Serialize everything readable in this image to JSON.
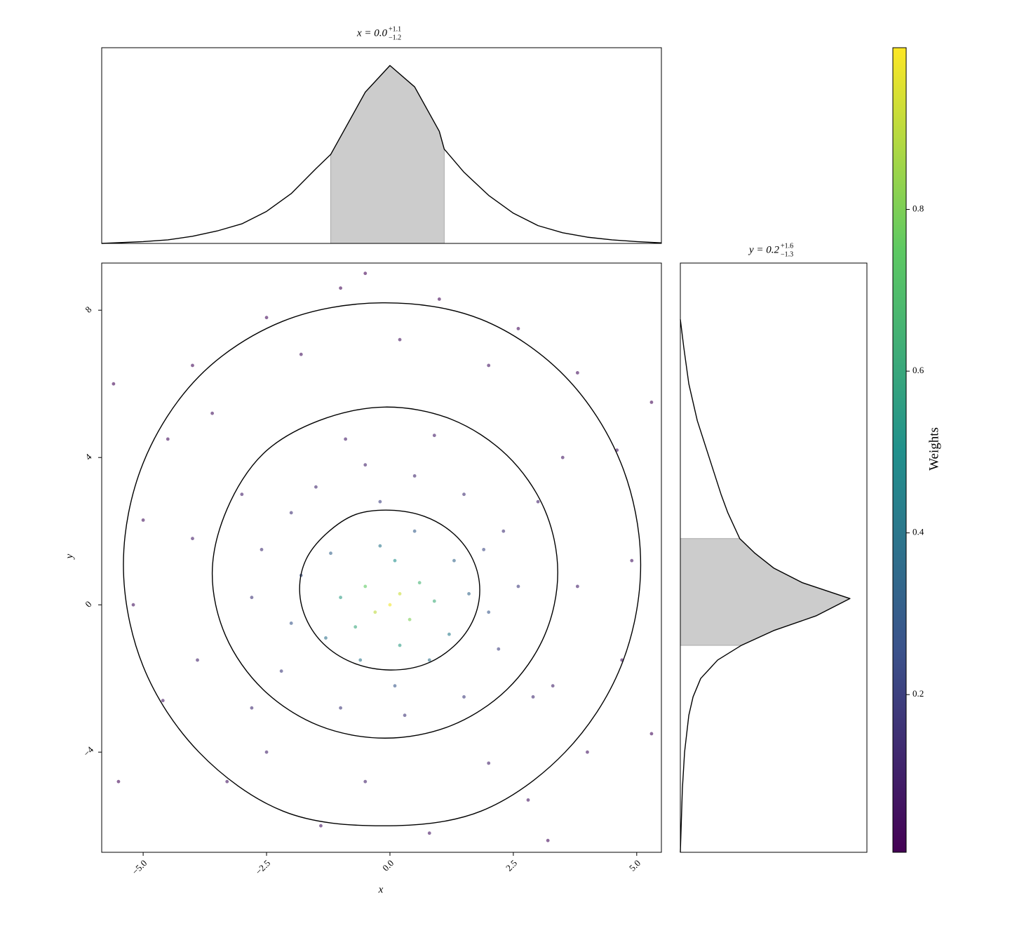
{
  "chart_data": [
    {
      "type": "scatter",
      "xlabel": "x",
      "ylabel": "y",
      "xlim": [
        -5.84,
        5.5
      ],
      "ylim": [
        -6.72,
        9.28
      ],
      "xticks": [
        {
          "value": -5.0,
          "label": "−5.0"
        },
        {
          "value": -2.5,
          "label": "−2.5"
        },
        {
          "value": 0,
          "label": "0.0"
        },
        {
          "value": 2.5,
          "label": "2.5"
        },
        {
          "value": 5.0,
          "label": "5.0"
        }
      ],
      "yticks": [
        8,
        4,
        0,
        {
          "value": -4,
          "label": "−4"
        }
      ],
      "x": [
        0,
        0.2,
        -0.3,
        0.4,
        -0.5,
        0.6,
        -0.7,
        0.9,
        -1.0,
        0.1,
        0.2,
        -0.2,
        1.2,
        -1.3,
        1.3,
        -1.2,
        0.5,
        -0.6,
        0.8,
        1.6,
        -2.0,
        -1.5,
        -0.5,
        0.5,
        1.5,
        2.3,
        2.6,
        2.2,
        1.5,
        0.3,
        -1.0,
        -2.2,
        -2.8,
        -2.6,
        -0.9,
        0.9,
        -3.0,
        3.0,
        2.9,
        -2.8,
        -1.8,
        1.9,
        -0.2,
        0.1,
        2.0,
        -2.0,
        -4.5,
        -4.0,
        -2.5,
        -1.0,
        1.0,
        2.6,
        3.8,
        4.6,
        4.9,
        4.7,
        4.0,
        2.8,
        0.8,
        -1.4,
        -3.3,
        -4.6,
        -5.2,
        -5.0,
        -3.6,
        -1.8,
        0.2,
        2.0,
        3.5,
        3.8,
        3.3,
        2.0,
        -0.5,
        -2.5,
        -3.9,
        -4.0,
        -5.6,
        5.3,
        5.3,
        -5.5,
        -0.5,
        3.2
      ],
      "y": [
        0,
        0.3,
        -0.2,
        -0.4,
        0.5,
        0.6,
        -0.6,
        0.1,
        0.2,
        1.2,
        -1.1,
        1.6,
        -0.8,
        -0.9,
        1.2,
        1.4,
        2.0,
        -1.5,
        -1.5,
        0.3,
        2.5,
        3.2,
        3.8,
        3.5,
        3.0,
        2.0,
        0.5,
        -1.2,
        -2.5,
        -3.0,
        -2.8,
        -1.8,
        0.2,
        1.5,
        4.5,
        4.6,
        3.0,
        2.8,
        -2.5,
        -2.8,
        0.8,
        1.5,
        2.8,
        -2.2,
        -0.2,
        -0.5,
        4.5,
        6.5,
        7.8,
        8.6,
        8.3,
        7.5,
        6.3,
        4.2,
        1.2,
        -1.5,
        -4.0,
        -5.3,
        -6.2,
        -6.0,
        -4.8,
        -2.6,
        0.0,
        2.3,
        5.2,
        6.8,
        7.2,
        6.5,
        4.0,
        0.5,
        -2.2,
        -4.3,
        -4.8,
        -4.0,
        -1.5,
        1.8,
        6.0,
        5.5,
        -3.5,
        -4.8,
        9.0,
        -6.4
      ],
      "weights": [
        0.98,
        0.92,
        0.9,
        0.8,
        0.75,
        0.65,
        0.6,
        0.62,
        0.55,
        0.5,
        0.55,
        0.4,
        0.42,
        0.38,
        0.33,
        0.32,
        0.3,
        0.4,
        0.38,
        0.33,
        0.15,
        0.12,
        0.1,
        0.12,
        0.14,
        0.15,
        0.18,
        0.2,
        0.18,
        0.16,
        0.17,
        0.18,
        0.16,
        0.14,
        0.08,
        0.08,
        0.09,
        0.1,
        0.13,
        0.13,
        0.25,
        0.22,
        0.2,
        0.28,
        0.28,
        0.27,
        0.04,
        0.03,
        0.03,
        0.02,
        0.02,
        0.03,
        0.04,
        0.05,
        0.06,
        0.06,
        0.06,
        0.06,
        0.06,
        0.06,
        0.06,
        0.06,
        0.05,
        0.05,
        0.05,
        0.05,
        0.05,
        0.06,
        0.07,
        0.09,
        0.1,
        0.1,
        0.1,
        0.1,
        0.1,
        0.08,
        0.02,
        0.02,
        0.03,
        0.02,
        0.01,
        0.03
      ],
      "colormap": [
        "#440154",
        "#3b528b",
        "#21918c",
        "#5ec962",
        "#fde725"
      ],
      "clim": [
        0.005,
        1.0
      ],
      "cticks": [
        0.2,
        0.4,
        0.6,
        0.8
      ],
      "colorbar_label": "Weights",
      "contour_color": "#000000",
      "contours": [
        {
          "x": [
            1.82,
            1.68,
            1.29,
            0.7,
            0,
            -0.7,
            -1.29,
            -1.7,
            -1.83,
            -1.68,
            -1.29,
            -0.7,
            0,
            0.7,
            1.29,
            1.68
          ],
          "y": [
            0.4,
            1.23,
            1.93,
            2.4,
            2.57,
            2.45,
            1.93,
            1.23,
            0.4,
            -0.43,
            -1.13,
            -1.6,
            -1.77,
            -1.62,
            -1.13,
            -0.43
          ]
        },
        {
          "x": [
            3.4,
            3.13,
            2.37,
            1.24,
            -0.1,
            -1.44,
            -2.57,
            -3.3,
            -3.6,
            -3.33,
            -2.57,
            -1.44,
            -0.1,
            1.24,
            2.37,
            3.13
          ],
          "y": [
            0.88,
            2.6,
            4.06,
            5.04,
            5.37,
            5.0,
            4.1,
            2.6,
            0.88,
            -0.84,
            -2.3,
            -3.28,
            -3.62,
            -3.28,
            -2.3,
            -0.84
          ]
        },
        {
          "x": [
            5.08,
            4.68,
            3.55,
            1.85,
            -0.16,
            -2.17,
            -3.87,
            -5.0,
            -5.4,
            -5.0,
            -3.87,
            -2.17,
            -0.16,
            1.85,
            3.55,
            4.68
          ],
          "y": [
            1.09,
            3.85,
            6.2,
            7.75,
            8.2,
            7.7,
            6.2,
            3.85,
            1.09,
            -1.67,
            -4.0,
            -5.6,
            -6.0,
            -5.6,
            -4.0,
            -1.67
          ]
        }
      ]
    },
    {
      "type": "density",
      "orientation": "horizontal",
      "title": {
        "text": "x = 0.0",
        "upper": "+1.1",
        "lower": "−1.2"
      },
      "xlim": [
        -5.84,
        5.5
      ],
      "ylim": [
        0,
        1.1
      ],
      "x": [
        -5.84,
        -5,
        -4.5,
        -4,
        -3.5,
        -3,
        -2.5,
        -2,
        -1.5,
        -1.2,
        -1,
        -0.5,
        0,
        0.5,
        1,
        1.1,
        1.5,
        2,
        2.5,
        3,
        3.5,
        4,
        4.5,
        5,
        5.5
      ],
      "values": [
        0.0,
        0.01,
        0.02,
        0.04,
        0.07,
        0.11,
        0.18,
        0.28,
        0.42,
        0.5,
        0.6,
        0.85,
        1.0,
        0.88,
        0.63,
        0.53,
        0.4,
        0.27,
        0.17,
        0.1,
        0.06,
        0.035,
        0.02,
        0.01,
        0.003
      ],
      "shade": [
        -1.2,
        1.1
      ],
      "line_color": "#000000",
      "fill_color": "#cccccc"
    },
    {
      "type": "density",
      "orientation": "vertical",
      "title": {
        "text": "y = 0.2",
        "upper": "+1.6",
        "lower": "−1.3"
      },
      "xlim": [
        0,
        1.1
      ],
      "ylim": [
        -6.72,
        9.28
      ],
      "y": [
        -6.72,
        -6,
        -5,
        -4,
        -3,
        -2.5,
        -2,
        -1.5,
        -1.1,
        -0.7,
        -0.3,
        0.17,
        0.6,
        1,
        1.4,
        1.8,
        2.5,
        3,
        4,
        5,
        6,
        7,
        7.75
      ],
      "values": [
        0,
        0.005,
        0.012,
        0.025,
        0.05,
        0.075,
        0.12,
        0.22,
        0.36,
        0.55,
        0.8,
        1.0,
        0.72,
        0.55,
        0.44,
        0.35,
        0.28,
        0.24,
        0.17,
        0.1,
        0.05,
        0.02,
        0
      ],
      "shade": [
        -1.1,
        1.8
      ],
      "line_color": "#000000",
      "fill_color": "#cccccc"
    }
  ]
}
